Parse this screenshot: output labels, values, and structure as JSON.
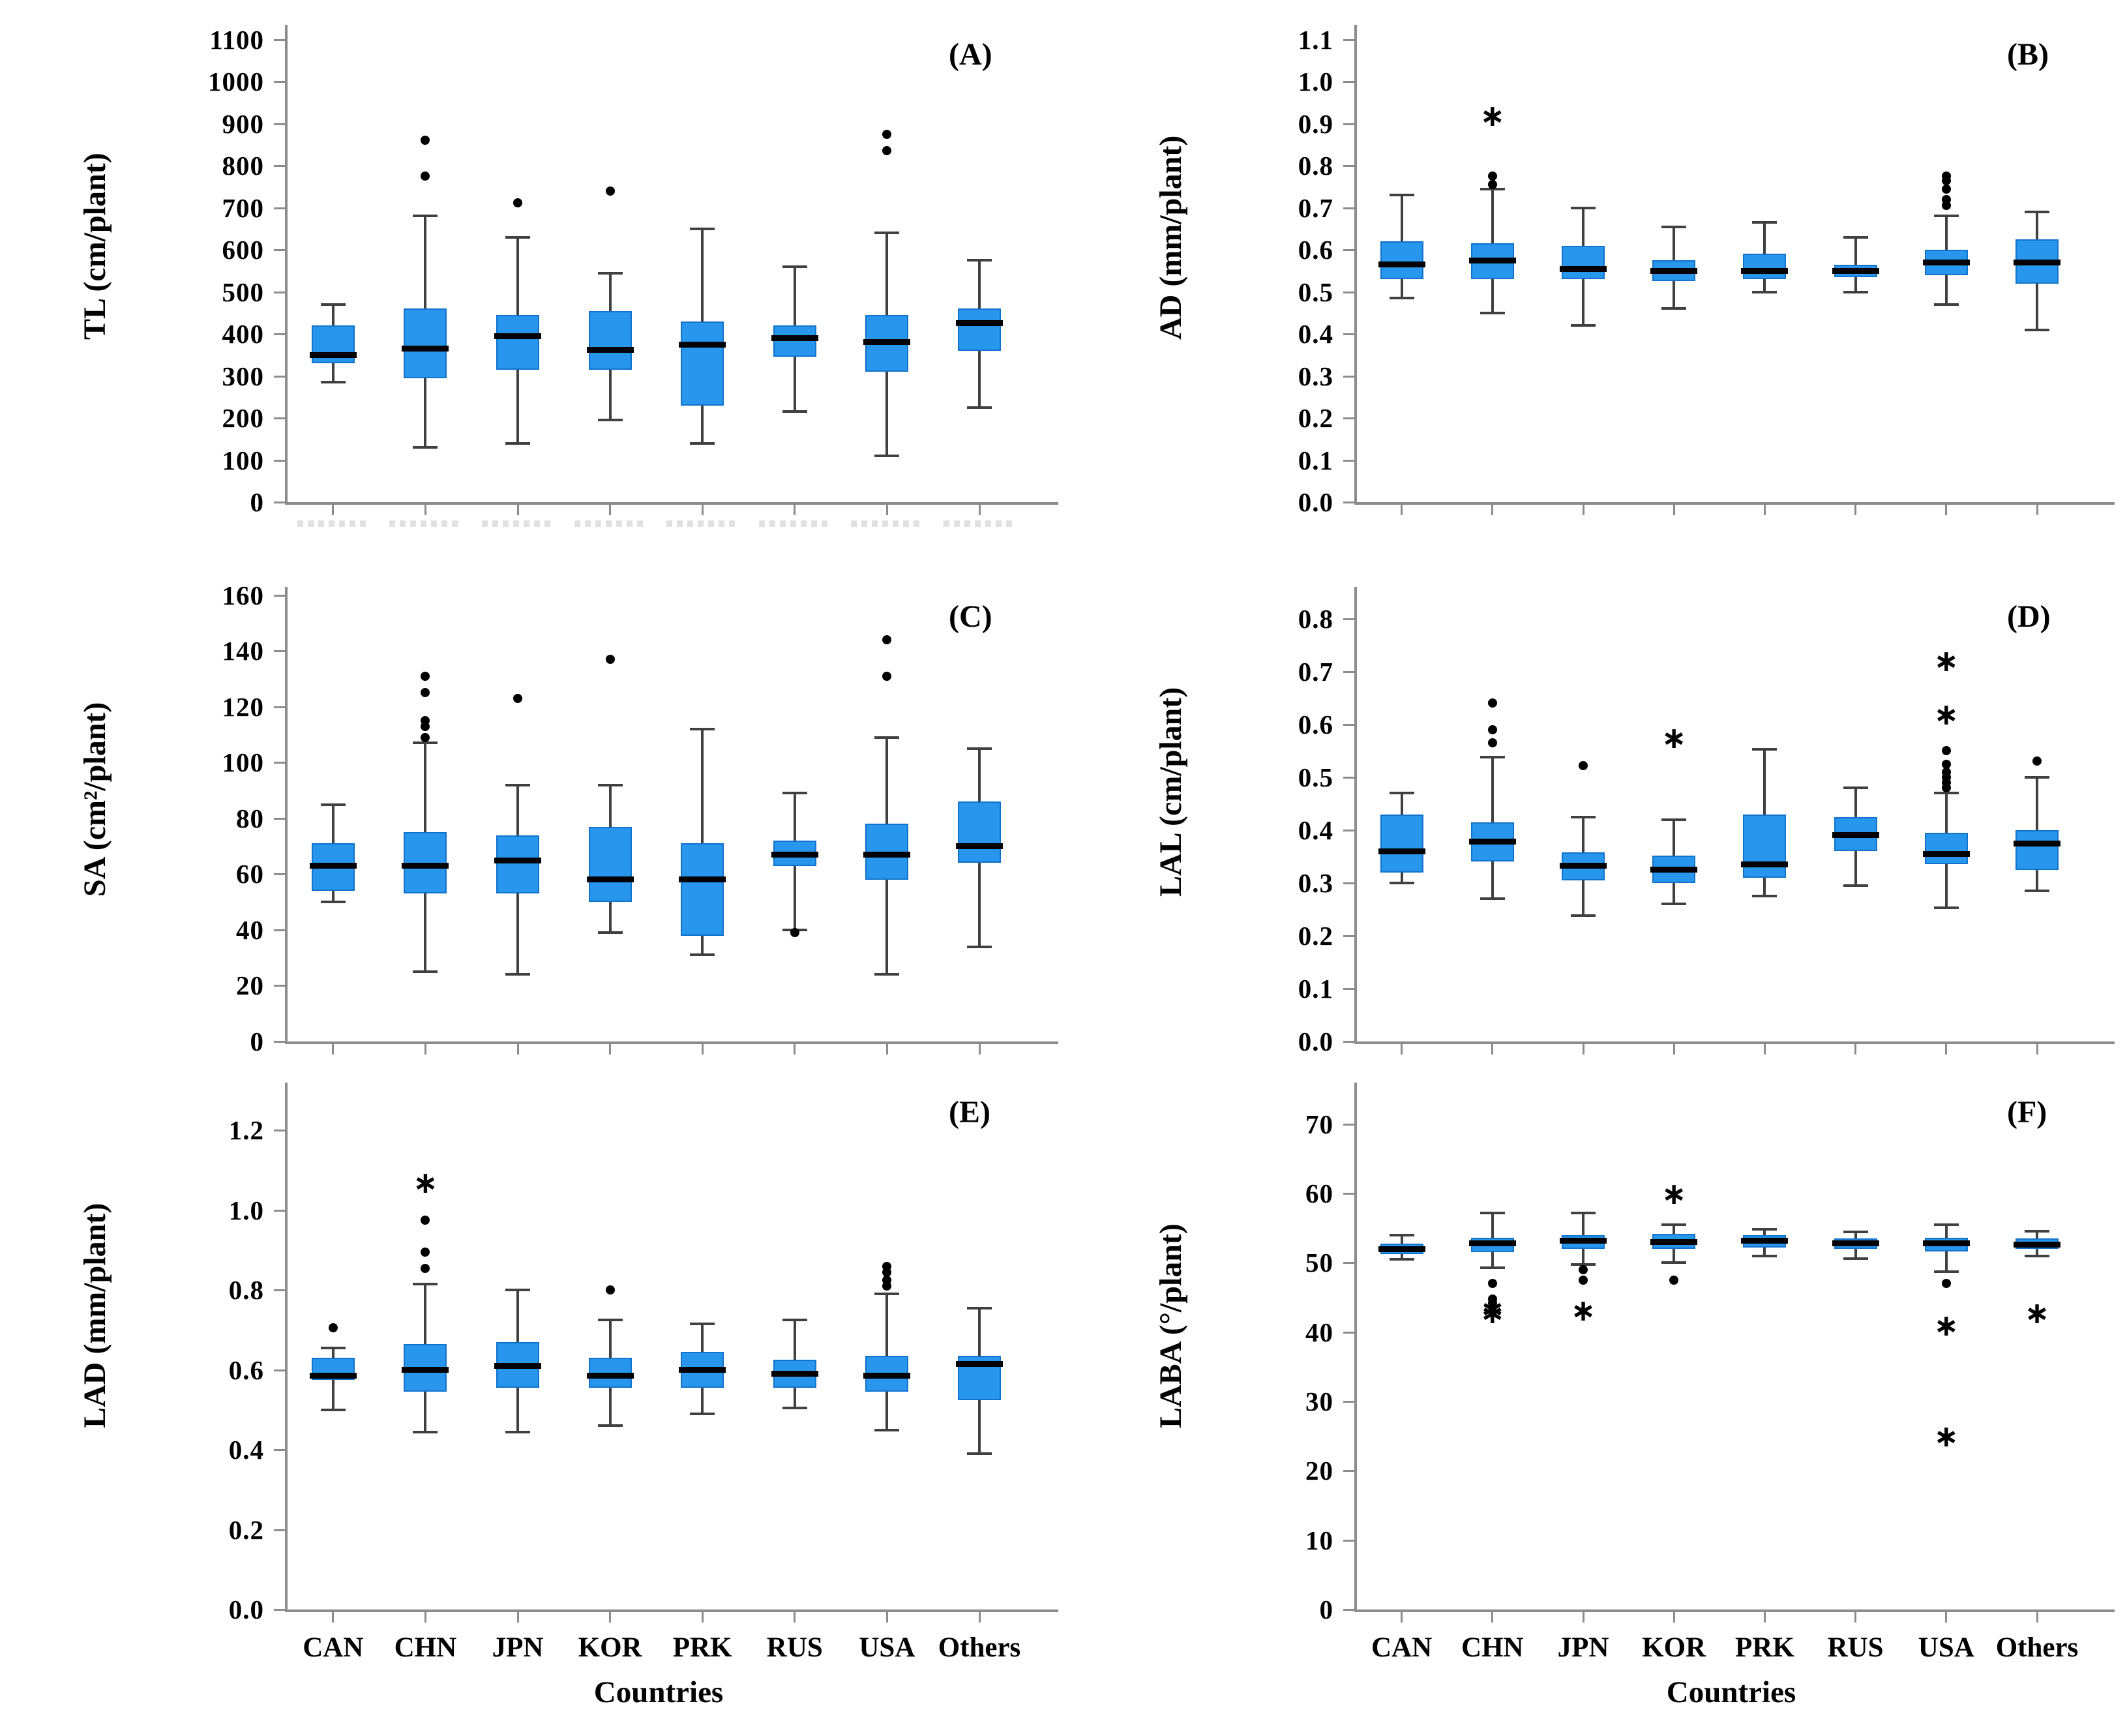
{
  "figure": {
    "x_axis_title": "Countries",
    "categories": [
      "CAN",
      "CHN",
      "JPN",
      "KOR",
      "PRK",
      "RUS",
      "USA",
      "Others"
    ]
  },
  "colors": {
    "box_fill": "#2796ec",
    "box_edge": "#1273cc",
    "median": "#000000",
    "whisker": "#404040",
    "axis": "#8c8c8c",
    "text": "#000000"
  },
  "chart_data": [
    {
      "type": "box",
      "panel": "A",
      "label": "(A)",
      "ylabel": "TL (cm/plant)",
      "ylim": [
        0,
        1135
      ],
      "ytick_values": [
        0,
        100,
        200,
        300,
        400,
        500,
        600,
        700,
        800,
        900,
        1000,
        1100
      ],
      "ytick_labels": [
        "0",
        "100",
        "200",
        "300",
        "400",
        "500",
        "600",
        "700",
        "800",
        "900",
        "1000",
        "1100"
      ],
      "series": [
        {
          "name": "CAN",
          "whislo": 285,
          "q1": 330,
          "med": 350,
          "q3": 420,
          "whishi": 470,
          "outliers_dot": [],
          "outliers_star": []
        },
        {
          "name": "CHN",
          "whislo": 130,
          "q1": 295,
          "med": 365,
          "q3": 460,
          "whishi": 680,
          "outliers_dot": [
            775,
            860
          ],
          "outliers_star": []
        },
        {
          "name": "JPN",
          "whislo": 140,
          "q1": 315,
          "med": 395,
          "q3": 445,
          "whishi": 630,
          "outliers_dot": [
            712
          ],
          "outliers_star": []
        },
        {
          "name": "KOR",
          "whislo": 195,
          "q1": 315,
          "med": 362,
          "q3": 455,
          "whishi": 545,
          "outliers_dot": [
            740
          ],
          "outliers_star": []
        },
        {
          "name": "PRK",
          "whislo": 140,
          "q1": 230,
          "med": 375,
          "q3": 430,
          "whishi": 650,
          "outliers_dot": [],
          "outliers_star": []
        },
        {
          "name": "RUS",
          "whislo": 215,
          "q1": 345,
          "med": 390,
          "q3": 420,
          "whishi": 560,
          "outliers_dot": [],
          "outliers_star": []
        },
        {
          "name": "USA",
          "whislo": 110,
          "q1": 310,
          "med": 380,
          "q3": 445,
          "whishi": 640,
          "outliers_dot": [
            835,
            875
          ],
          "outliers_star": []
        },
        {
          "name": "Others",
          "whislo": 225,
          "q1": 360,
          "med": 425,
          "q3": 460,
          "whishi": 575,
          "outliers_dot": [],
          "outliers_star": []
        }
      ]
    },
    {
      "type": "box",
      "panel": "B",
      "label": "(B)",
      "ylabel": "AD (mm/plant)",
      "ylim": [
        0,
        1.135
      ],
      "ytick_values": [
        0,
        0.1,
        0.2,
        0.3,
        0.4,
        0.5,
        0.6,
        0.7,
        0.8,
        0.9,
        1.0,
        1.1
      ],
      "ytick_labels": [
        "0.0",
        "0.1",
        "0.2",
        "0.3",
        "0.4",
        "0.5",
        "0.6",
        "0.7",
        "0.8",
        "0.9",
        "1.0",
        "1.1"
      ],
      "series": [
        {
          "name": "CAN",
          "whislo": 0.485,
          "q1": 0.53,
          "med": 0.565,
          "q3": 0.62,
          "whishi": 0.73,
          "outliers_dot": [],
          "outliers_star": []
        },
        {
          "name": "CHN",
          "whislo": 0.45,
          "q1": 0.53,
          "med": 0.575,
          "q3": 0.615,
          "whishi": 0.745,
          "outliers_dot": [
            0.755,
            0.775
          ],
          "outliers_star": [
            0.92
          ]
        },
        {
          "name": "JPN",
          "whislo": 0.42,
          "q1": 0.53,
          "med": 0.555,
          "q3": 0.61,
          "whishi": 0.7,
          "outliers_dot": [],
          "outliers_star": []
        },
        {
          "name": "KOR",
          "whislo": 0.46,
          "q1": 0.525,
          "med": 0.55,
          "q3": 0.575,
          "whishi": 0.655,
          "outliers_dot": [],
          "outliers_star": []
        },
        {
          "name": "PRK",
          "whislo": 0.5,
          "q1": 0.53,
          "med": 0.55,
          "q3": 0.59,
          "whishi": 0.665,
          "outliers_dot": [],
          "outliers_star": []
        },
        {
          "name": "RUS",
          "whislo": 0.5,
          "q1": 0.535,
          "med": 0.55,
          "q3": 0.565,
          "whishi": 0.63,
          "outliers_dot": [],
          "outliers_star": []
        },
        {
          "name": "USA",
          "whislo": 0.47,
          "q1": 0.54,
          "med": 0.57,
          "q3": 0.6,
          "whishi": 0.68,
          "outliers_dot": [
            0.705,
            0.72,
            0.745,
            0.765,
            0.775
          ],
          "outliers_star": []
        },
        {
          "name": "Others",
          "whislo": 0.41,
          "q1": 0.52,
          "med": 0.57,
          "q3": 0.625,
          "whishi": 0.69,
          "outliers_dot": [],
          "outliers_star": []
        }
      ]
    },
    {
      "type": "box",
      "panel": "C",
      "label": "(C)",
      "ylabel": "SA (cm²/plant)",
      "ylim": [
        0,
        163
      ],
      "ytick_values": [
        0,
        20,
        40,
        60,
        80,
        100,
        120,
        140,
        160
      ],
      "ytick_labels": [
        "0",
        "20",
        "40",
        "60",
        "80",
        "100",
        "120",
        "140",
        "160"
      ],
      "series": [
        {
          "name": "CAN",
          "whislo": 50,
          "q1": 54,
          "med": 63,
          "q3": 71,
          "whishi": 85,
          "outliers_dot": [],
          "outliers_star": []
        },
        {
          "name": "CHN",
          "whislo": 25,
          "q1": 53,
          "med": 63,
          "q3": 75,
          "whishi": 107,
          "outliers_dot": [
            109,
            113,
            115,
            125,
            131
          ],
          "outliers_star": []
        },
        {
          "name": "JPN",
          "whislo": 24,
          "q1": 53,
          "med": 65,
          "q3": 74,
          "whishi": 92,
          "outliers_dot": [
            123
          ],
          "outliers_star": []
        },
        {
          "name": "KOR",
          "whislo": 39,
          "q1": 50,
          "med": 58,
          "q3": 77,
          "whishi": 92,
          "outliers_dot": [
            137
          ],
          "outliers_star": []
        },
        {
          "name": "PRK",
          "whislo": 31,
          "q1": 38,
          "med": 58,
          "q3": 71,
          "whishi": 112,
          "outliers_dot": [],
          "outliers_star": []
        },
        {
          "name": "RUS",
          "whislo": 40,
          "q1": 63,
          "med": 67,
          "q3": 72,
          "whishi": 89,
          "outliers_dot": [
            39
          ],
          "outliers_star": []
        },
        {
          "name": "USA",
          "whislo": 24,
          "q1": 58,
          "med": 67,
          "q3": 78,
          "whishi": 109,
          "outliers_dot": [
            131,
            144
          ],
          "outliers_star": []
        },
        {
          "name": "Others",
          "whislo": 34,
          "q1": 64,
          "med": 70,
          "q3": 86,
          "whishi": 105,
          "outliers_dot": [],
          "outliers_star": []
        }
      ]
    },
    {
      "type": "box",
      "panel": "D",
      "label": "(D)",
      "ylabel": "LAL (cm/plant)",
      "ylim": [
        0,
        0.86
      ],
      "ytick_values": [
        0,
        0.1,
        0.2,
        0.3,
        0.4,
        0.5,
        0.6,
        0.7,
        0.8
      ],
      "ytick_labels": [
        "0.0",
        "0.1",
        "0.2",
        "0.3",
        "0.4",
        "0.5",
        "0.6",
        "0.7",
        "0.8"
      ],
      "series": [
        {
          "name": "CAN",
          "whislo": 0.3,
          "q1": 0.32,
          "med": 0.36,
          "q3": 0.43,
          "whishi": 0.47,
          "outliers_dot": [],
          "outliers_star": []
        },
        {
          "name": "CHN",
          "whislo": 0.27,
          "q1": 0.34,
          "med": 0.378,
          "q3": 0.415,
          "whishi": 0.538,
          "outliers_dot": [
            0.565,
            0.59,
            0.64
          ],
          "outliers_star": []
        },
        {
          "name": "JPN",
          "whislo": 0.238,
          "q1": 0.305,
          "med": 0.333,
          "q3": 0.358,
          "whishi": 0.425,
          "outliers_dot": [
            0.522
          ],
          "outliers_star": []
        },
        {
          "name": "KOR",
          "whislo": 0.26,
          "q1": 0.3,
          "med": 0.325,
          "q3": 0.352,
          "whishi": 0.42,
          "outliers_dot": [],
          "outliers_star": [
            0.575
          ]
        },
        {
          "name": "PRK",
          "whislo": 0.275,
          "q1": 0.31,
          "med": 0.335,
          "q3": 0.43,
          "whishi": 0.553,
          "outliers_dot": [],
          "outliers_star": []
        },
        {
          "name": "RUS",
          "whislo": 0.295,
          "q1": 0.36,
          "med": 0.39,
          "q3": 0.425,
          "whishi": 0.48,
          "outliers_dot": [],
          "outliers_star": []
        },
        {
          "name": "USA",
          "whislo": 0.253,
          "q1": 0.335,
          "med": 0.355,
          "q3": 0.395,
          "whishi": 0.47,
          "outliers_dot": [
            0.48,
            0.49,
            0.5,
            0.51,
            0.525,
            0.55
          ],
          "outliers_star": [
            0.62,
            0.72
          ]
        },
        {
          "name": "Others",
          "whislo": 0.285,
          "q1": 0.325,
          "med": 0.375,
          "q3": 0.4,
          "whishi": 0.5,
          "outliers_dot": [
            0.53
          ],
          "outliers_star": []
        }
      ]
    },
    {
      "type": "box",
      "panel": "E",
      "label": "(E)",
      "ylabel": "LAD (mm/plant)",
      "ylim": [
        0,
        1.32
      ],
      "ytick_values": [
        0,
        0.2,
        0.4,
        0.6,
        0.8,
        1.0,
        1.2
      ],
      "ytick_labels": [
        "0.0",
        "0.2",
        "0.4",
        "0.6",
        "0.8",
        "1.0",
        "1.2"
      ],
      "series": [
        {
          "name": "CAN",
          "whislo": 0.5,
          "q1": 0.575,
          "med": 0.585,
          "q3": 0.63,
          "whishi": 0.655,
          "outliers_dot": [
            0.705
          ],
          "outliers_star": []
        },
        {
          "name": "CHN",
          "whislo": 0.445,
          "q1": 0.545,
          "med": 0.6,
          "q3": 0.665,
          "whishi": 0.815,
          "outliers_dot": [
            0.855,
            0.895,
            0.975
          ],
          "outliers_star": [
            1.07
          ]
        },
        {
          "name": "JPN",
          "whislo": 0.445,
          "q1": 0.555,
          "med": 0.61,
          "q3": 0.67,
          "whishi": 0.8,
          "outliers_dot": [],
          "outliers_star": []
        },
        {
          "name": "KOR",
          "whislo": 0.46,
          "q1": 0.555,
          "med": 0.585,
          "q3": 0.63,
          "whishi": 0.725,
          "outliers_dot": [
            0.8
          ],
          "outliers_star": []
        },
        {
          "name": "PRK",
          "whislo": 0.49,
          "q1": 0.555,
          "med": 0.6,
          "q3": 0.645,
          "whishi": 0.715,
          "outliers_dot": [],
          "outliers_star": []
        },
        {
          "name": "RUS",
          "whislo": 0.505,
          "q1": 0.555,
          "med": 0.59,
          "q3": 0.625,
          "whishi": 0.725,
          "outliers_dot": [],
          "outliers_star": []
        },
        {
          "name": "USA",
          "whislo": 0.45,
          "q1": 0.545,
          "med": 0.585,
          "q3": 0.635,
          "whishi": 0.79,
          "outliers_dot": [
            0.81,
            0.825,
            0.845,
            0.86
          ],
          "outliers_star": []
        },
        {
          "name": "Others",
          "whislo": 0.39,
          "q1": 0.525,
          "med": 0.615,
          "q3": 0.635,
          "whishi": 0.755,
          "outliers_dot": [],
          "outliers_star": []
        }
      ]
    },
    {
      "type": "box",
      "panel": "F",
      "label": "(F)",
      "ylabel": "LABA (°/plant)",
      "ylim": [
        0,
        76
      ],
      "ytick_values": [
        0,
        10,
        20,
        30,
        40,
        50,
        60,
        70
      ],
      "ytick_labels": [
        "0",
        "10",
        "20",
        "30",
        "40",
        "50",
        "60",
        "70"
      ],
      "series": [
        {
          "name": "CAN",
          "whislo": 50.5,
          "q1": 51.3,
          "med": 52.0,
          "q3": 52.8,
          "whishi": 54.0,
          "outliers_dot": [],
          "outliers_star": []
        },
        {
          "name": "CHN",
          "whislo": 49.3,
          "q1": 51.5,
          "med": 52.8,
          "q3": 53.6,
          "whishi": 57.2,
          "outliers_dot": [
            47.0,
            44.8,
            44.2
          ],
          "outliers_star": [
            43.5,
            42.8
          ]
        },
        {
          "name": "JPN",
          "whislo": 49.8,
          "q1": 52.0,
          "med": 53.2,
          "q3": 54.0,
          "whishi": 57.2,
          "outliers_dot": [
            49.0,
            47.5
          ],
          "outliers_star": [
            43.2
          ]
        },
        {
          "name": "KOR",
          "whislo": 50.0,
          "q1": 52.0,
          "med": 53.0,
          "q3": 54.2,
          "whishi": 55.5,
          "outliers_dot": [
            47.5
          ],
          "outliers_star": [
            60.0
          ]
        },
        {
          "name": "PRK",
          "whislo": 51.0,
          "q1": 52.2,
          "med": 53.2,
          "q3": 54.0,
          "whishi": 54.8,
          "outliers_dot": [],
          "outliers_star": []
        },
        {
          "name": "RUS",
          "whislo": 50.6,
          "q1": 52.0,
          "med": 52.8,
          "q3": 53.5,
          "whishi": 54.5,
          "outliers_dot": [],
          "outliers_star": []
        },
        {
          "name": "USA",
          "whislo": 48.7,
          "q1": 51.6,
          "med": 52.8,
          "q3": 53.6,
          "whishi": 55.5,
          "outliers_dot": [
            47.0
          ],
          "outliers_star": [
            41.0,
            25.0
          ]
        },
        {
          "name": "Others",
          "whislo": 51.0,
          "q1": 52.0,
          "med": 52.6,
          "q3": 53.5,
          "whishi": 54.6,
          "outliers_dot": [],
          "outliers_star": [
            42.8
          ]
        }
      ]
    }
  ]
}
